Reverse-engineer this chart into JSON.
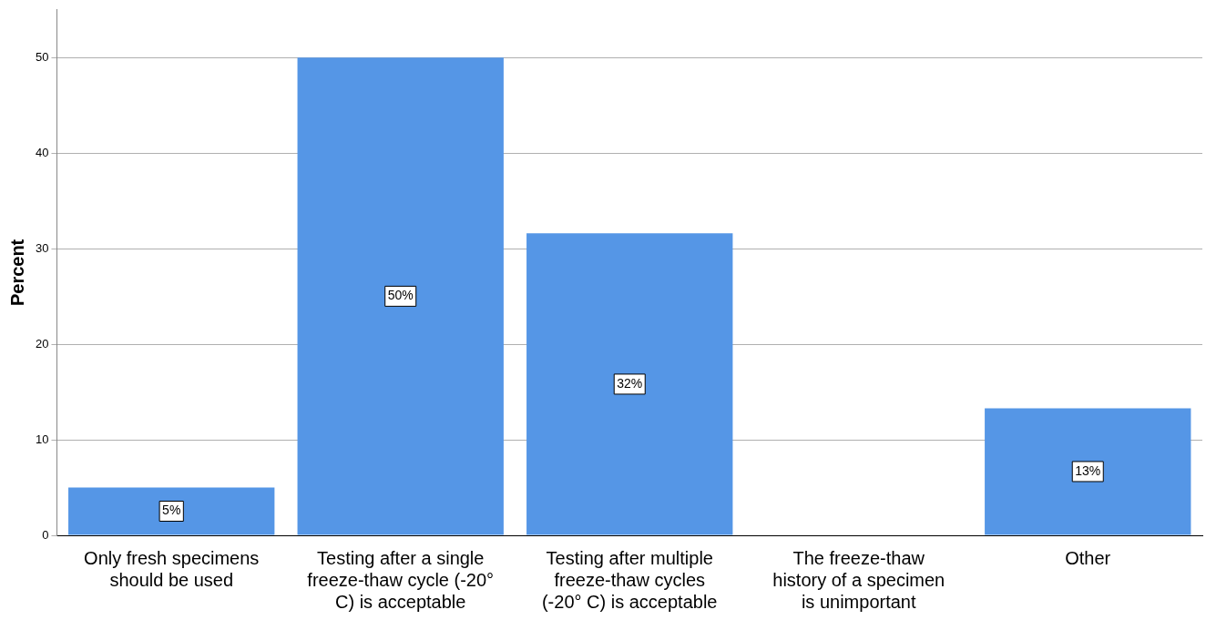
{
  "chart_data": {
    "type": "bar",
    "ylabel": "Percent",
    "categories": [
      "Only fresh specimens should be used",
      "Testing after a single freeze-thaw cycle (-20° C) is acceptable",
      "Testing after multiple freeze-thaw cycles (-20° C) is acceptable",
      "The freeze-thaw history of a specimen is unimportant",
      "Other"
    ],
    "values": [
      5,
      50,
      31.6,
      0,
      13.3
    ],
    "value_labels": [
      "5%",
      "50%",
      "32%",
      null,
      "13%"
    ],
    "color": "#5596e6",
    "ylim": [
      0,
      55
    ],
    "yticks": [
      0,
      10,
      20,
      30,
      40,
      50
    ],
    "grid": "y",
    "legend": false
  }
}
